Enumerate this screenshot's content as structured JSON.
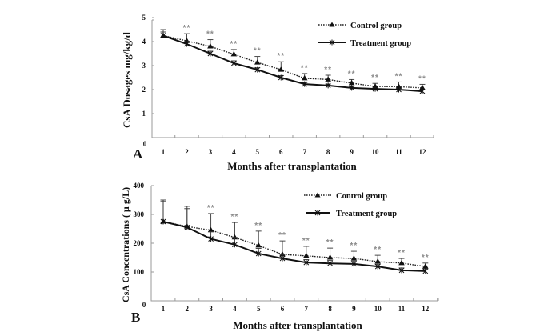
{
  "chart_data": [
    {
      "type": "line",
      "panel_label": "A",
      "title": "",
      "xlabel": "Months after transplantation",
      "ylabel": "CsA Dosages mg/kg/d",
      "x": [
        1,
        2,
        3,
        4,
        5,
        6,
        7,
        8,
        9,
        10,
        11,
        12
      ],
      "x_tick_labels": [
        "1",
        "2",
        "3",
        "4",
        "5",
        "6",
        "7",
        "8",
        "9",
        "10",
        "11",
        "12"
      ],
      "y_ticks": [
        0,
        1,
        2,
        3,
        4,
        5
      ],
      "y_tick_labels": [
        "0",
        "1",
        "2",
        "3",
        "4",
        "5"
      ],
      "ylim": [
        0,
        5
      ],
      "grid": false,
      "legend_position": "top-right",
      "series": [
        {
          "name": "Control group",
          "style": "dotted",
          "marker": "triangle",
          "values": [
            4.25,
            4.03,
            3.8,
            3.47,
            3.13,
            2.83,
            2.47,
            2.42,
            2.27,
            2.13,
            2.12,
            2.07
          ],
          "error": [
            0.25,
            0.3,
            0.28,
            0.2,
            0.25,
            0.33,
            0.2,
            0.18,
            0.15,
            0.13,
            0.2,
            0.15
          ]
        },
        {
          "name": "Treatment group",
          "style": "solid",
          "marker": "asterisk",
          "values": [
            4.25,
            3.9,
            3.5,
            3.1,
            2.83,
            2.5,
            2.23,
            2.17,
            2.07,
            2.03,
            2.0,
            1.93
          ],
          "error": [
            0.15,
            0.1,
            0.1,
            0.1,
            0.08,
            0.08,
            0.06,
            0.06,
            0.06,
            0.06,
            0.06,
            0.06
          ]
        }
      ],
      "annotations": [
        "",
        "**",
        "**",
        "**",
        "**",
        "**",
        "**",
        "**",
        "**",
        "**",
        "**",
        "**"
      ]
    },
    {
      "type": "line",
      "panel_label": "B",
      "title": "",
      "xlabel": "Months after transplantation",
      "ylabel": "CsA Concentrations ( μ g/L)",
      "x": [
        1,
        2,
        3,
        4,
        5,
        6,
        7,
        8,
        9,
        10,
        11,
        12
      ],
      "x_tick_labels": [
        "1",
        "2",
        "3",
        "4",
        "5",
        "6",
        "7",
        "8",
        "9",
        "10",
        "11",
        "12"
      ],
      "y_ticks": [
        0,
        100,
        200,
        300,
        400
      ],
      "y_tick_labels": [
        "0",
        "100",
        "200",
        "300",
        "400"
      ],
      "ylim": [
        0,
        400
      ],
      "grid": false,
      "legend_position": "top-right",
      "series": [
        {
          "name": "Control group",
          "style": "dotted",
          "marker": "triangle",
          "values": [
            275,
            258,
            245,
            220,
            192,
            161,
            156,
            150,
            147,
            136,
            131,
            119
          ],
          "error": [
            75,
            70,
            58,
            52,
            50,
            47,
            33,
            33,
            25,
            22,
            16,
            12
          ]
        },
        {
          "name": "Treatment group",
          "style": "solid",
          "marker": "asterisk",
          "values": [
            275,
            255,
            215,
            195,
            164,
            147,
            133,
            130,
            128,
            119,
            106,
            103
          ],
          "error": [
            70,
            65,
            25,
            25,
            18,
            12,
            10,
            10,
            10,
            8,
            8,
            8
          ]
        }
      ],
      "annotations": [
        "",
        "",
        "**",
        "**",
        "**",
        "**",
        "**",
        "**",
        "**",
        "**",
        "**",
        "**"
      ]
    }
  ]
}
